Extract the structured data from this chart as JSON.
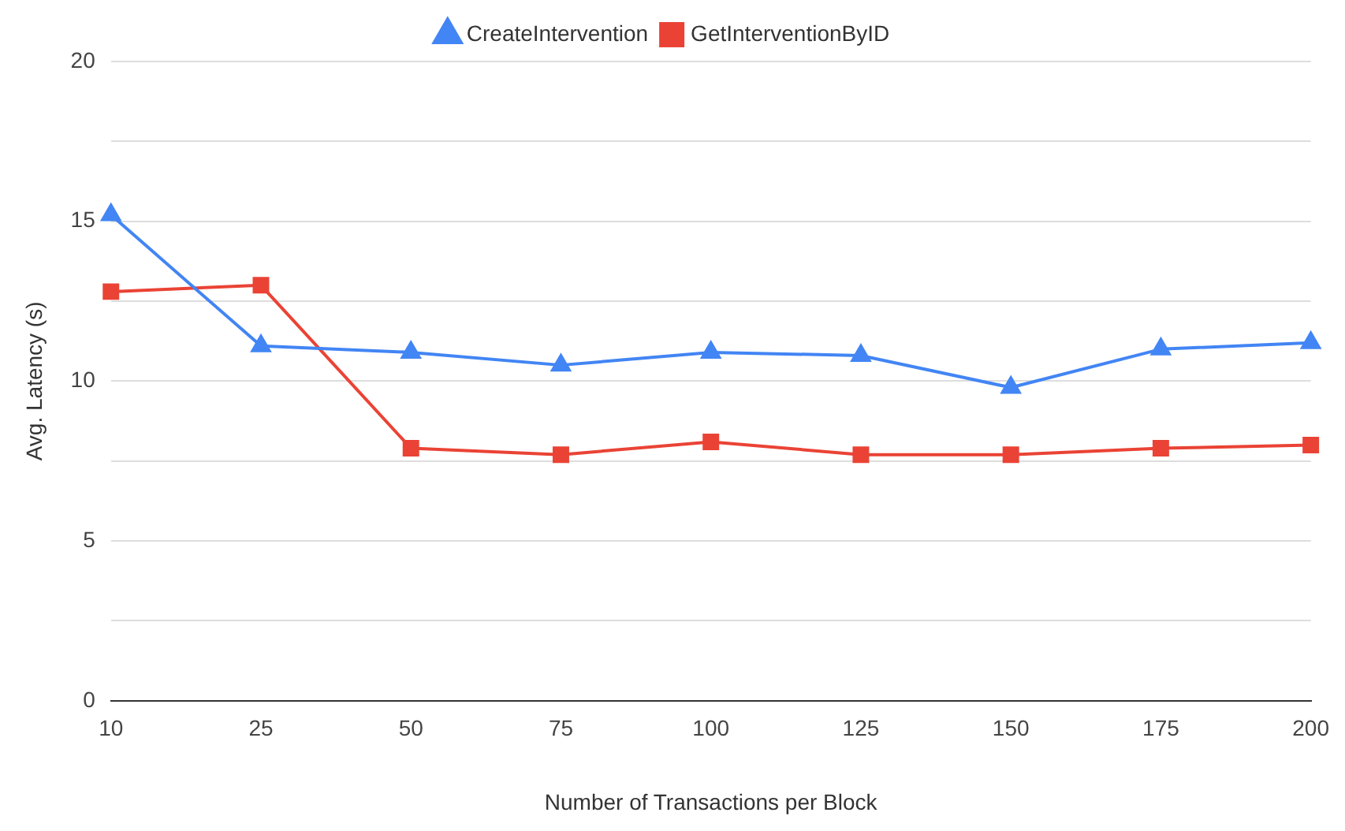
{
  "chart_data": {
    "type": "line",
    "xlabel": "Number of Transactions per Block",
    "ylabel": "Avg. Latency (s)",
    "categories": [
      "10",
      "25",
      "50",
      "75",
      "100",
      "125",
      "150",
      "175",
      "200"
    ],
    "series": [
      {
        "name": "CreateIntervention",
        "color": "#4285f4",
        "marker": "triangle",
        "values": [
          15.2,
          11.1,
          10.9,
          10.5,
          10.9,
          10.8,
          9.8,
          11.0,
          11.2
        ]
      },
      {
        "name": "GetInterventionByID",
        "color": "#ea4335",
        "marker": "square",
        "values": [
          12.8,
          13.0,
          7.9,
          7.7,
          8.1,
          7.7,
          7.7,
          7.9,
          8.0
        ]
      }
    ],
    "ylim": [
      0,
      20
    ],
    "yticks": [
      0,
      {
        "value": 2.5,
        "label": null
      },
      5,
      {
        "value": 7.5,
        "label": null
      },
      10,
      {
        "value": 12.5,
        "label": null
      },
      15,
      {
        "value": 17.5,
        "label": null
      },
      20
    ],
    "grid": "y",
    "legend": "top",
    "line_style": "solid"
  }
}
